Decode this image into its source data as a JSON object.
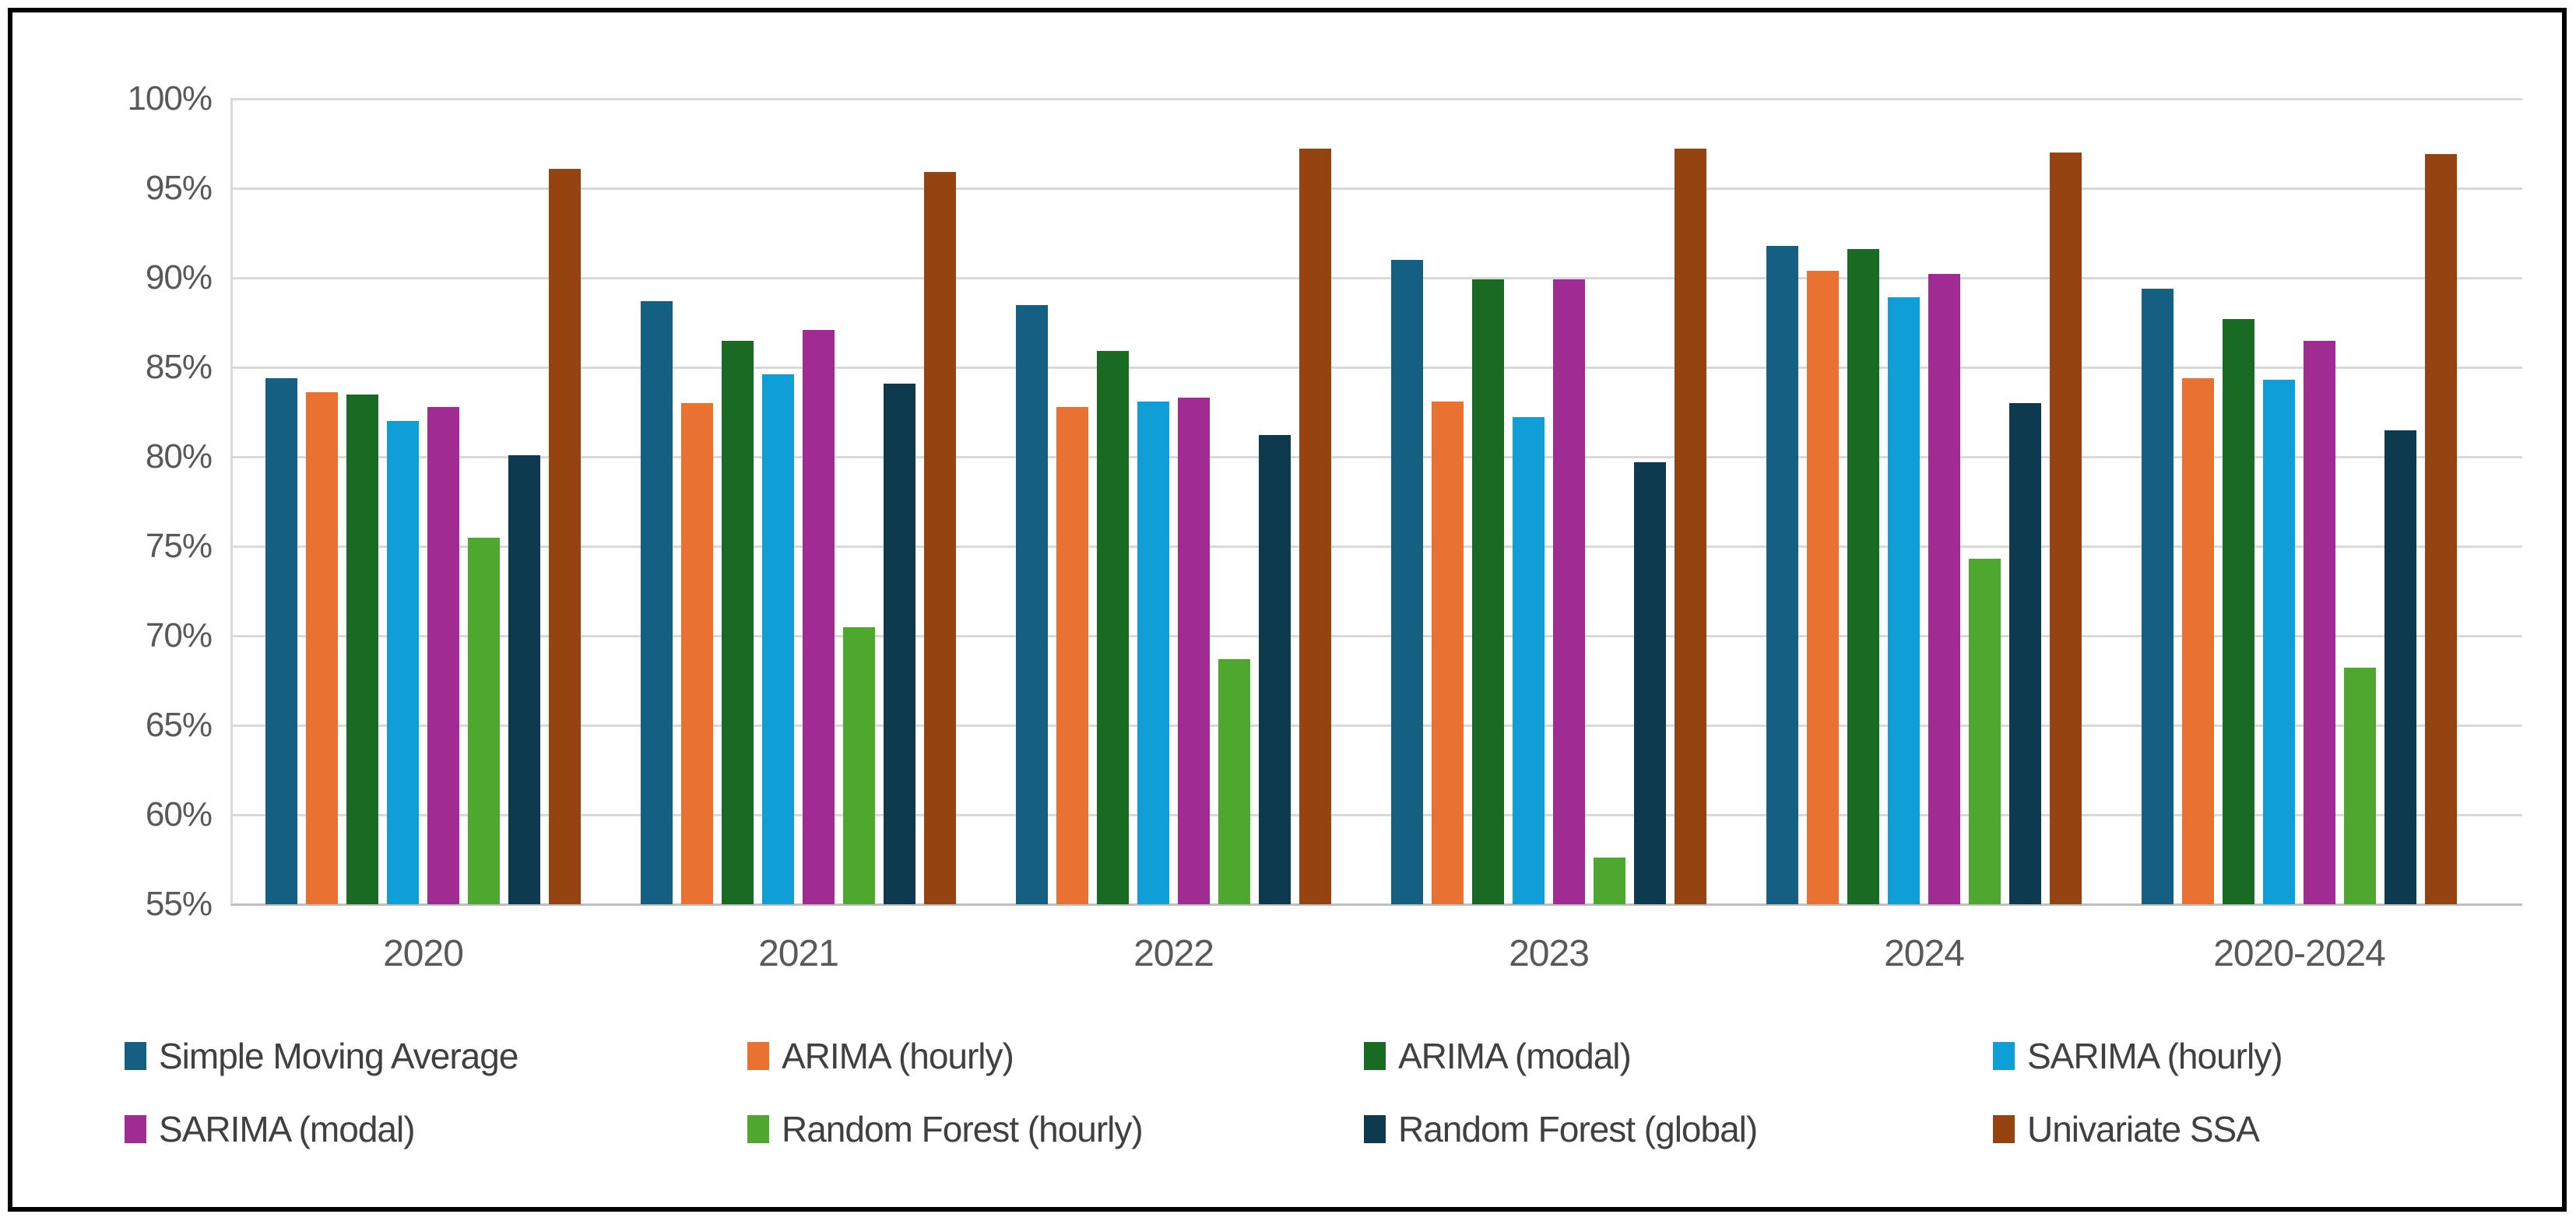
{
  "chart_data": {
    "type": "bar",
    "title": "",
    "xlabel": "",
    "ylabel": "",
    "categories": [
      "2020",
      "2021",
      "2022",
      "2023",
      "2024",
      "2020-2024"
    ],
    "series": [
      {
        "name": "Simple Moving Average",
        "color": "#156082",
        "values": [
          84.4,
          88.7,
          88.5,
          91.0,
          91.8,
          89.4
        ]
      },
      {
        "name": "ARIMA (hourly)",
        "color": "#E97132",
        "values": [
          83.6,
          83.0,
          82.8,
          83.1,
          90.4,
          84.4
        ]
      },
      {
        "name": "ARIMA (modal)",
        "color": "#196B24",
        "values": [
          83.5,
          86.5,
          85.9,
          89.9,
          91.6,
          87.7
        ]
      },
      {
        "name": "SARIMA (hourly)",
        "color": "#0F9ED5",
        "values": [
          82.0,
          84.6,
          83.1,
          82.2,
          88.9,
          84.3
        ]
      },
      {
        "name": "SARIMA (modal)",
        "color": "#A02B93",
        "values": [
          82.8,
          87.1,
          83.3,
          89.9,
          90.2,
          86.5
        ]
      },
      {
        "name": "Random Forest (hourly)",
        "color": "#4EA72E",
        "values": [
          75.5,
          70.5,
          68.7,
          57.6,
          74.3,
          68.2
        ]
      },
      {
        "name": "Random Forest (global)",
        "color": "#0E3A50",
        "values": [
          80.1,
          84.1,
          81.2,
          79.7,
          83.0,
          81.5
        ]
      },
      {
        "name": "Univariate SSA",
        "color": "#964312",
        "values": [
          96.1,
          95.9,
          97.2,
          97.2,
          97.0,
          96.9
        ]
      }
    ],
    "ylim": [
      55,
      100
    ],
    "ytick_step": 5,
    "ytick_labels": [
      "100%",
      "95%",
      "90%",
      "85%",
      "80%",
      "75%",
      "70%",
      "65%",
      "60%",
      "55%"
    ],
    "grid": true,
    "legend_position": "bottom",
    "legend_columns": 4
  },
  "colors": {
    "background": "#FFFFFF",
    "frame_border": "#000000",
    "gridline": "#D9D9D9",
    "axis_baseline": "#BFBFBF",
    "tick_text": "#595959",
    "legend_text": "#404040"
  }
}
